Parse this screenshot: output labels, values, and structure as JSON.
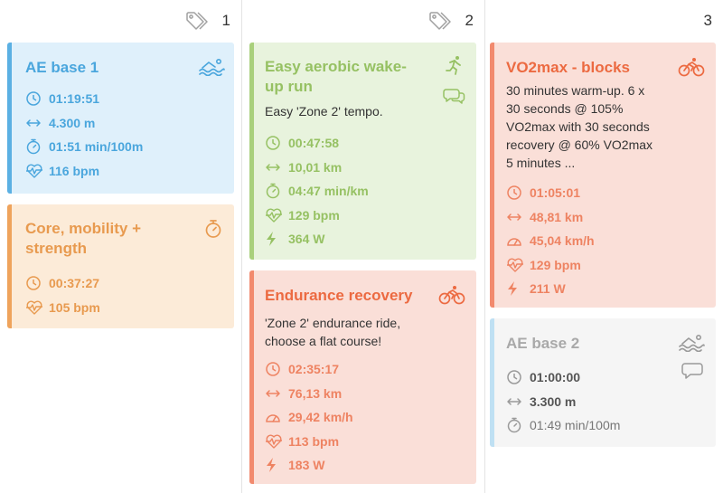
{
  "columns": [
    {
      "day": "1",
      "cards": [
        {
          "title": "AE base 1",
          "sport_icon": "swim-icon",
          "metrics": [
            {
              "icon": "clock-icon",
              "value": "01:19:51"
            },
            {
              "icon": "distance-icon",
              "value": "4.300 m"
            },
            {
              "icon": "stopwatch-icon",
              "value": "01:51 min/100m"
            },
            {
              "icon": "heart-rate-icon",
              "value": "116 bpm"
            }
          ]
        },
        {
          "title": "Core, mobility + strength",
          "sport_icon": "stopwatch-icon",
          "metrics": [
            {
              "icon": "clock-icon",
              "value": "00:37:27"
            },
            {
              "icon": "heart-rate-icon",
              "value": "105 bpm"
            }
          ]
        }
      ]
    },
    {
      "day": "2",
      "cards": [
        {
          "title": "Easy aerobic wake-up run",
          "title_lines": [
            "Easy aerobic wake-",
            "up run"
          ],
          "sport_icon": "run-icon",
          "description": "Easy 'Zone 2' tempo.",
          "metrics": [
            {
              "icon": "clock-icon",
              "value": "00:47:58"
            },
            {
              "icon": "distance-icon",
              "value": "10,01 km"
            },
            {
              "icon": "stopwatch-icon",
              "value": "04:47 min/km"
            },
            {
              "icon": "heart-rate-icon",
              "value": "129 bpm"
            },
            {
              "icon": "power-icon",
              "value": "364 W"
            }
          ]
        },
        {
          "title": "Endurance recovery",
          "sport_icon": "bike-icon",
          "description_lines": [
            "'Zone 2' endurance ride,",
            "choose a flat course!"
          ],
          "metrics": [
            {
              "icon": "clock-icon",
              "value": "02:35:17"
            },
            {
              "icon": "distance-icon",
              "value": "76,13 km"
            },
            {
              "icon": "speed-icon",
              "value": "29,42 km/h"
            },
            {
              "icon": "heart-rate-icon",
              "value": "113 bpm"
            },
            {
              "icon": "power-icon",
              "value": "183 W"
            }
          ]
        }
      ]
    },
    {
      "day": "3",
      "cards": [
        {
          "title": "VO2max - blocks",
          "sport_icon": "bike-icon",
          "description_lines": [
            "30 minutes warm-up. 6 x",
            "30 seconds @ 105%",
            "VO2max with 30 seconds",
            "recovery @ 60% VO2max",
            "5 minutes ..."
          ],
          "metrics": [
            {
              "icon": "clock-icon",
              "value": "01:05:01"
            },
            {
              "icon": "distance-icon",
              "value": "48,81 km"
            },
            {
              "icon": "speed-icon",
              "value": "45,04 km/h"
            },
            {
              "icon": "heart-rate-icon",
              "value": "129 bpm"
            },
            {
              "icon": "power-icon",
              "value": "211 W"
            }
          ]
        },
        {
          "title": "AE base 2",
          "sport_icon": "swim-icon",
          "metrics": [
            {
              "icon": "clock-icon",
              "value": "01:00:00"
            },
            {
              "icon": "distance-icon",
              "value": "3.300 m"
            },
            {
              "icon": "stopwatch-icon",
              "value": "01:49 min/100m"
            }
          ]
        }
      ]
    }
  ]
}
